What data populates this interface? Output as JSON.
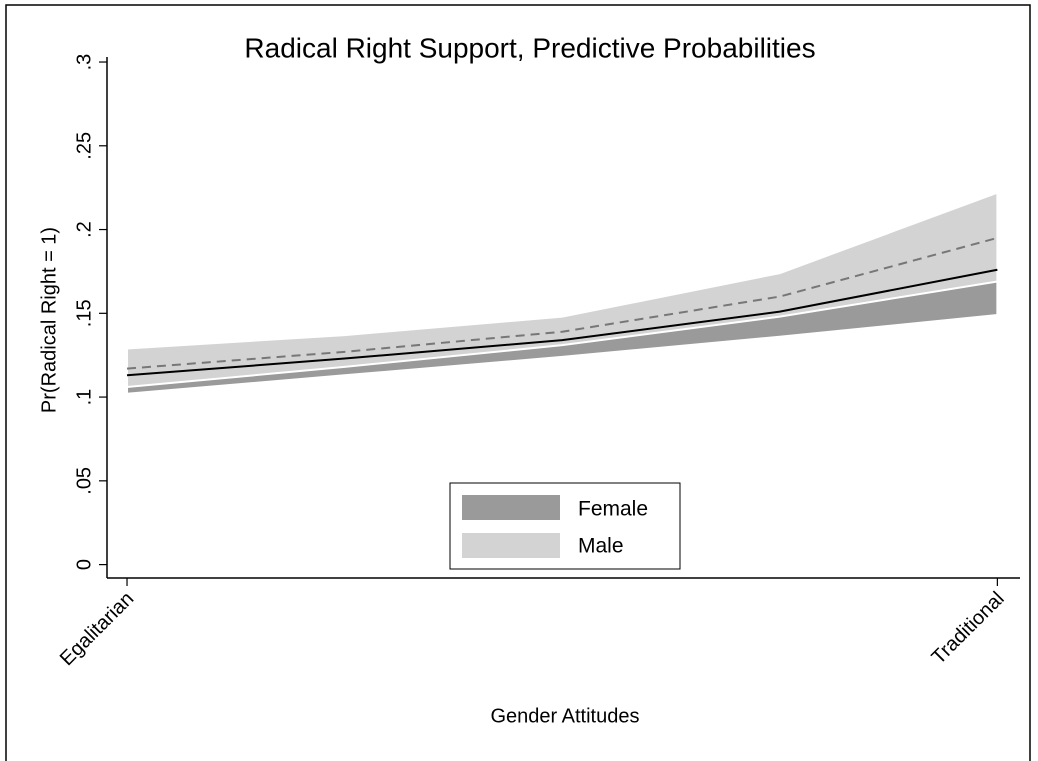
{
  "chart_data": {
    "type": "band-line",
    "title": "Radical Right Support, Predictive Probabilities",
    "x_label": "Gender Attitudes",
    "y_label": "Pr(Radical Right = 1)",
    "x": [
      0,
      0.25,
      0.5,
      0.75,
      1
    ],
    "xlim": [
      -0.023,
      1.026
    ],
    "xticks": [
      {
        "value": 0,
        "label": "Egalitarian"
      },
      {
        "value": 1,
        "label": "Traditional"
      }
    ],
    "ylim": [
      -0.008,
      0.303
    ],
    "yticks": [
      0,
      {
        "value": 0.05,
        "label": ".05"
      },
      {
        "value": 0.1,
        "label": ".1"
      },
      {
        "value": 0.15,
        "label": ".15"
      },
      {
        "value": 0.2,
        "label": ".2"
      },
      {
        "value": 0.25,
        "label": ".25"
      },
      {
        "value": 0.3,
        "label": ".3"
      }
    ],
    "legend": "bottom",
    "series": [
      {
        "name": "Female",
        "color": "#9a9a9a",
        "line_color": "#000000",
        "dashed": false,
        "values": [
          0.113,
          0.123,
          0.134,
          0.151,
          0.176
        ],
        "lower": [
          0.102,
          0.113,
          0.124,
          0.136,
          0.149
        ],
        "upper": [
          0.124,
          0.133,
          0.145,
          0.167,
          0.204
        ]
      },
      {
        "name": "Male",
        "color": "#d3d3d3",
        "line_color": "#777777",
        "dashed": true,
        "values": [
          0.117,
          0.127,
          0.139,
          0.16,
          0.195
        ],
        "lower": [
          0.106,
          0.118,
          0.131,
          0.148,
          0.169
        ],
        "upper": [
          0.129,
          0.137,
          0.148,
          0.174,
          0.222
        ]
      }
    ]
  }
}
